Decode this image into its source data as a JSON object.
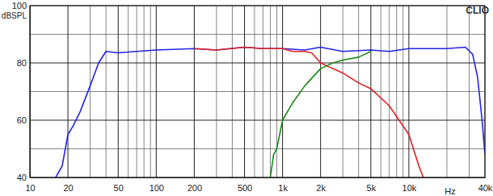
{
  "chart_data": {
    "type": "line",
    "title": "CLIO",
    "y_label": "dBSPL",
    "x_label": "Hz",
    "log": "x",
    "grid": true,
    "xlim": [
      10,
      40000
    ],
    "ylim": [
      40,
      100
    ],
    "xticks": [
      10,
      20,
      50,
      100,
      200,
      500,
      {
        "value": 1000,
        "label": "1k"
      },
      {
        "value": 2000,
        "label": "2k"
      },
      {
        "value": 5000,
        "label": "5k"
      },
      {
        "value": 10000,
        "label": "10k"
      },
      {
        "value": 40000,
        "label": "40k"
      }
    ],
    "yticks": [
      40,
      60,
      80,
      100
    ],
    "series": [
      {
        "color": "#2424e6",
        "x": [
          16,
          18,
          20,
          22,
          25,
          30,
          35,
          40,
          50,
          70,
          100,
          200,
          300,
          500,
          700,
          1000,
          1500,
          2000,
          3000,
          5000,
          7000,
          10000,
          15000,
          20000,
          28000,
          32000,
          35000,
          38000,
          40000
        ],
        "values": [
          40,
          44,
          55,
          58,
          63,
          72,
          80,
          84,
          83.5,
          84,
          84.5,
          85,
          84.5,
          85.5,
          85,
          85,
          84.5,
          85.5,
          84,
          84.5,
          84,
          85,
          85,
          85,
          85.5,
          83,
          75,
          60,
          48
        ]
      },
      {
        "color": "#e02020",
        "x": [
          200,
          300,
          500,
          700,
          1000,
          1200,
          1500,
          1700,
          2000,
          2500,
          3000,
          4000,
          5000,
          7000,
          10000,
          12000,
          13000
        ],
        "values": [
          85,
          84.5,
          85.5,
          85,
          85,
          84,
          84,
          83.5,
          80,
          78,
          76.5,
          73,
          71,
          65,
          55,
          44,
          40
        ]
      },
      {
        "color": "#1a8a1a",
        "x": [
          800,
          850,
          900,
          1000,
          1200,
          1500,
          2000,
          2500,
          3000,
          4000,
          5000
        ],
        "values": [
          40,
          48,
          50,
          60,
          66,
          72,
          78,
          80,
          81,
          82,
          84
        ]
      }
    ]
  }
}
